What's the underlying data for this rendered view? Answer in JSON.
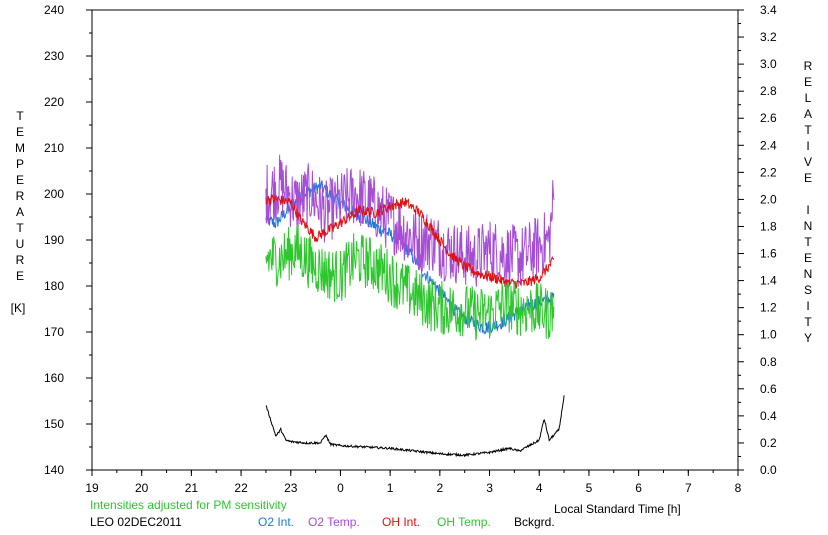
{
  "chart_data": {
    "type": "line",
    "x_axis": {
      "min": 19,
      "max": 8,
      "ticks": [
        "19",
        "20",
        "21",
        "22",
        "23",
        "0",
        "1",
        "2",
        "3",
        "4",
        "5",
        "6",
        "7",
        "8"
      ],
      "label": "Local Standard Time [h]"
    },
    "y_left": {
      "min": 140,
      "max": 240,
      "ticks": [
        140,
        150,
        160,
        170,
        180,
        190,
        200,
        210,
        220,
        230,
        240
      ],
      "label_letters": [
        "T",
        "E",
        "M",
        "P",
        "E",
        "R",
        "A",
        "T",
        "U",
        "R",
        "E"
      ],
      "unit": "[K]"
    },
    "y_right": {
      "min": 0.0,
      "max": 3.4,
      "ticks": [
        "0.0",
        "0.2",
        "0.4",
        "0.6",
        "0.8",
        "1.0",
        "1.2",
        "1.4",
        "1.6",
        "1.8",
        "2.0",
        "2.2",
        "2.4",
        "2.6",
        "2.8",
        "3.0",
        "3.2",
        "3.4"
      ],
      "label_letters_1": [
        "R",
        "E",
        "L",
        "A",
        "T",
        "I",
        "V",
        "E"
      ],
      "label_letters_2": [
        "I",
        "N",
        "T",
        "E",
        "N",
        "S",
        "I",
        "T",
        "Y"
      ]
    },
    "note": "Intensities adjusted for PM sensitivity",
    "station": "LEO 02DEC2011",
    "series": [
      {
        "name": "O2 Int.",
        "color": "#1f77d8",
        "axis": "right",
        "noise": 0.05,
        "x": [
          22.5,
          22.7,
          23.0,
          23.3,
          23.6,
          23.9,
          24.2,
          24.5,
          24.8,
          25.1,
          25.4,
          25.7,
          26.0,
          26.3,
          26.6,
          26.9,
          27.2,
          27.5,
          27.8,
          28.1,
          28.3
        ],
        "y": [
          1.85,
          1.82,
          1.95,
          2.05,
          2.1,
          2.0,
          1.92,
          1.85,
          1.78,
          1.72,
          1.6,
          1.45,
          1.32,
          1.18,
          1.1,
          1.05,
          1.08,
          1.15,
          1.22,
          1.25,
          1.28
        ]
      },
      {
        "name": "O2 Temp.",
        "color": "#a64dd6",
        "axis": "left",
        "noise": 7,
        "x": [
          22.5,
          22.8,
          23.1,
          23.4,
          23.7,
          24.0,
          24.3,
          24.6,
          24.9,
          25.2,
          25.5,
          25.8,
          26.1,
          26.4,
          26.7,
          27.0,
          27.3,
          27.6,
          27.9,
          28.2,
          28.3
        ],
        "y": [
          200,
          202,
          198,
          200,
          196,
          198,
          200,
          198,
          195,
          193,
          190,
          190,
          188,
          187,
          186,
          188,
          187,
          186,
          188,
          190,
          200
        ]
      },
      {
        "name": "OH Int.",
        "color": "#e01010",
        "axis": "right",
        "noise": 0.04,
        "x": [
          22.5,
          22.7,
          23.0,
          23.2,
          23.5,
          23.8,
          24.1,
          24.4,
          24.7,
          25.0,
          25.3,
          25.6,
          25.9,
          26.2,
          26.5,
          26.8,
          27.1,
          27.4,
          27.7,
          28.0,
          28.3
        ],
        "y": [
          2.0,
          2.0,
          1.98,
          1.85,
          1.72,
          1.78,
          1.85,
          1.92,
          1.9,
          1.95,
          1.98,
          1.9,
          1.75,
          1.6,
          1.5,
          1.45,
          1.42,
          1.38,
          1.38,
          1.42,
          1.55
        ]
      },
      {
        "name": "OH Temp.",
        "color": "#2ec62e",
        "axis": "left",
        "noise": 6,
        "x": [
          22.5,
          22.8,
          23.1,
          23.4,
          23.7,
          24.0,
          24.3,
          24.6,
          24.9,
          25.2,
          25.5,
          25.8,
          26.1,
          26.4,
          26.7,
          27.0,
          27.3,
          27.6,
          27.9,
          28.2,
          28.3
        ],
        "y": [
          186,
          186,
          188,
          185,
          183,
          182,
          186,
          185,
          183,
          180,
          178,
          176,
          175,
          175,
          174,
          174,
          176,
          175,
          175,
          174,
          175
        ]
      },
      {
        "name": "Bckgrd.",
        "color": "#000000",
        "axis": "right",
        "noise": 0.008,
        "x": [
          22.5,
          22.7,
          22.8,
          22.9,
          23.0,
          23.3,
          23.6,
          23.7,
          23.8,
          24.0,
          24.5,
          25.0,
          25.5,
          26.0,
          26.5,
          27.0,
          27.4,
          27.6,
          27.8,
          28.0,
          28.1,
          28.2,
          28.4,
          28.5
        ],
        "y": [
          0.48,
          0.25,
          0.3,
          0.22,
          0.21,
          0.2,
          0.2,
          0.26,
          0.19,
          0.18,
          0.17,
          0.16,
          0.14,
          0.12,
          0.11,
          0.13,
          0.16,
          0.14,
          0.18,
          0.22,
          0.38,
          0.22,
          0.3,
          0.55
        ]
      }
    ]
  },
  "legend": {
    "station": "LEO 02DEC2011",
    "note": "Intensities adjusted for PM sensitivity",
    "xlabel": "Local Standard Time [h]",
    "items": [
      {
        "label": "O2 Int.",
        "color": "#1f77d8"
      },
      {
        "label": "O2 Temp.",
        "color": "#a64dd6"
      },
      {
        "label": "OH Int.",
        "color": "#e01010"
      },
      {
        "label": "OH Temp.",
        "color": "#2ec62e"
      },
      {
        "label": "Bckgrd.",
        "color": "#000000"
      }
    ]
  }
}
